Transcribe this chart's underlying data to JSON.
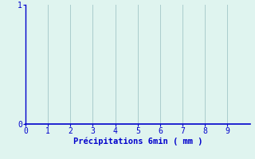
{
  "title": "",
  "xlabel": "Précipitations 6min ( mm )",
  "ylabel": "",
  "background_color": "#dff4ef",
  "plot_bg_color": "#dff4ef",
  "axis_color": "#0000cc",
  "grid_color": "#aacccc",
  "tick_color": "#0000cc",
  "label_color": "#0000cc",
  "xlim": [
    0,
    10
  ],
  "ylim": [
    0,
    1
  ],
  "xticks": [
    0,
    1,
    2,
    3,
    4,
    5,
    6,
    7,
    8,
    9
  ],
  "yticks": [
    0,
    1
  ],
  "xlabel_fontsize": 7.5,
  "tick_fontsize": 7
}
